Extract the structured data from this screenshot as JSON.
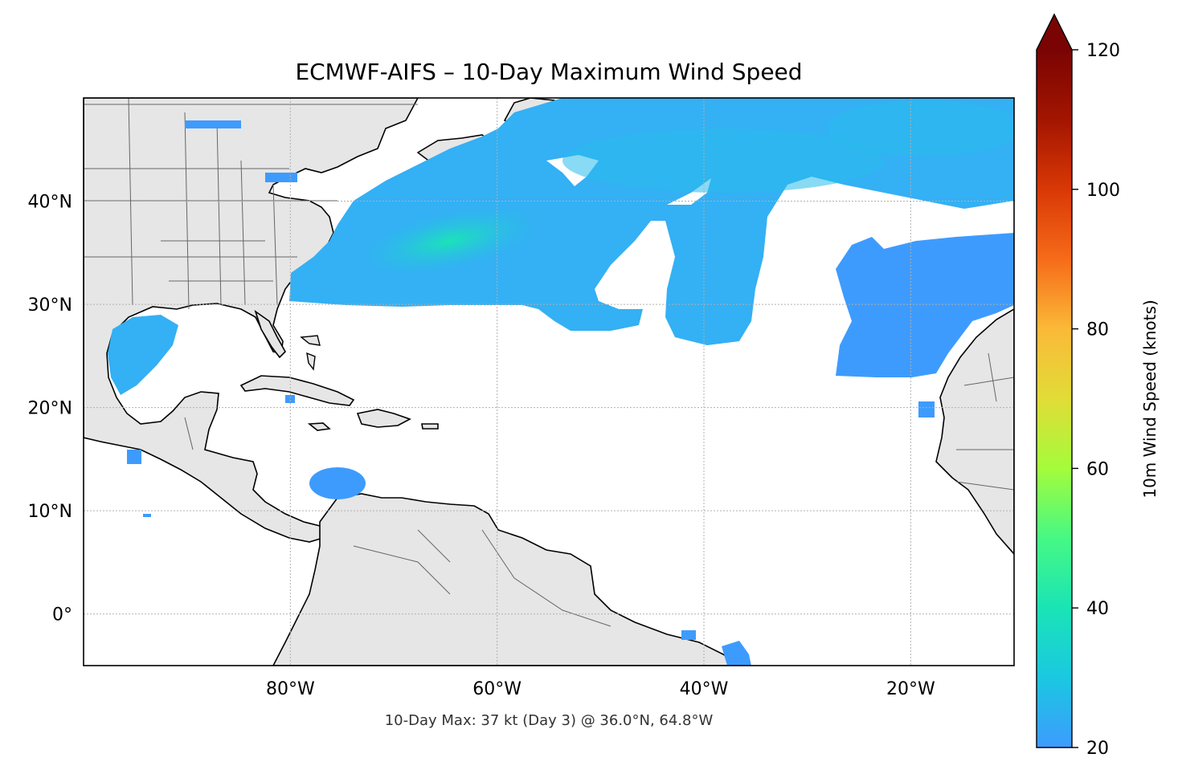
{
  "title": "ECMWF-AIFS – 10-Day Maximum Wind Speed",
  "footnote": "10-Day Max: 37 kt (Day 3) @ 36.0°N, 64.8°W",
  "map": {
    "projection": "PlateCarree",
    "lon_range": [
      -100,
      -10
    ],
    "lat_range": [
      -5,
      50
    ],
    "land_color": "#e6e6e6",
    "ocean_color": "#ffffff",
    "coastline_color": "#000000",
    "border_color": "#666666",
    "gridlines": true,
    "lat_ticks": [
      {
        "value": 0,
        "label": "0°"
      },
      {
        "value": 10,
        "label": "10°N"
      },
      {
        "value": 20,
        "label": "20°N"
      },
      {
        "value": 30,
        "label": "30°N"
      },
      {
        "value": 40,
        "label": "40°N"
      }
    ],
    "lon_ticks": [
      {
        "value": -80,
        "label": "80°W"
      },
      {
        "value": -60,
        "label": "60°W"
      },
      {
        "value": -40,
        "label": "40°W"
      },
      {
        "value": -20,
        "label": "20°W"
      }
    ],
    "max_location": {
      "lat": 36.0,
      "lon": -64.8,
      "value_kt": 37,
      "day": 3
    }
  },
  "colorbar": {
    "label": "10m Wind Speed (knots)",
    "vmin": 20,
    "vmax": 120,
    "extend": "max",
    "colormap": "turbo",
    "ticks": [
      {
        "value": 20,
        "label": "20"
      },
      {
        "value": 40,
        "label": "40"
      },
      {
        "value": 60,
        "label": "60"
      },
      {
        "value": 80,
        "label": "80"
      },
      {
        "value": 100,
        "label": "100"
      },
      {
        "value": 120,
        "label": "120"
      }
    ],
    "extend_color": "#7a0403"
  },
  "wind_field": {
    "units": "knots",
    "threshold": 20,
    "colors": {
      "low": "#3e9bfe",
      "mid": "#28bceb",
      "high": "#1ae4b6"
    }
  }
}
